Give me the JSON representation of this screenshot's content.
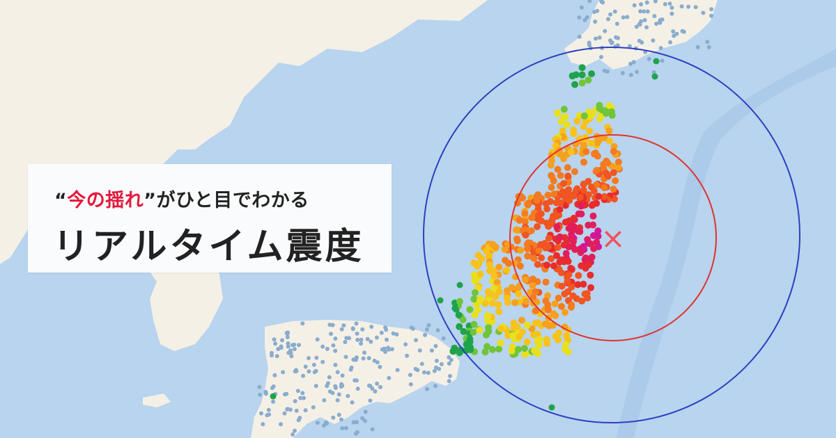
{
  "headline": {
    "open_quote": "“",
    "emphasis": "今の揺れ",
    "close_quote": "”",
    "suffix": "がひと目でわかる",
    "title": "リアルタイム震度"
  },
  "map": {
    "epicenter_marker": "×",
    "colors": {
      "sea": "#b8d4ee",
      "land": "#f5f0e6",
      "trench": "#9dbde3",
      "outer_ring": "#2a3fbf",
      "inner_ring": "#e0322e",
      "epicenter": "#f0505a",
      "station_idle": "#8aaccd",
      "accent": "#e4193c"
    },
    "intensity_scale": [
      "#1fa34a",
      "#6fc43a",
      "#e8e01c",
      "#f7c21b",
      "#f6a01f",
      "#f47b20",
      "#f05522",
      "#e82c2c",
      "#e21e5a",
      "#d41694"
    ]
  }
}
